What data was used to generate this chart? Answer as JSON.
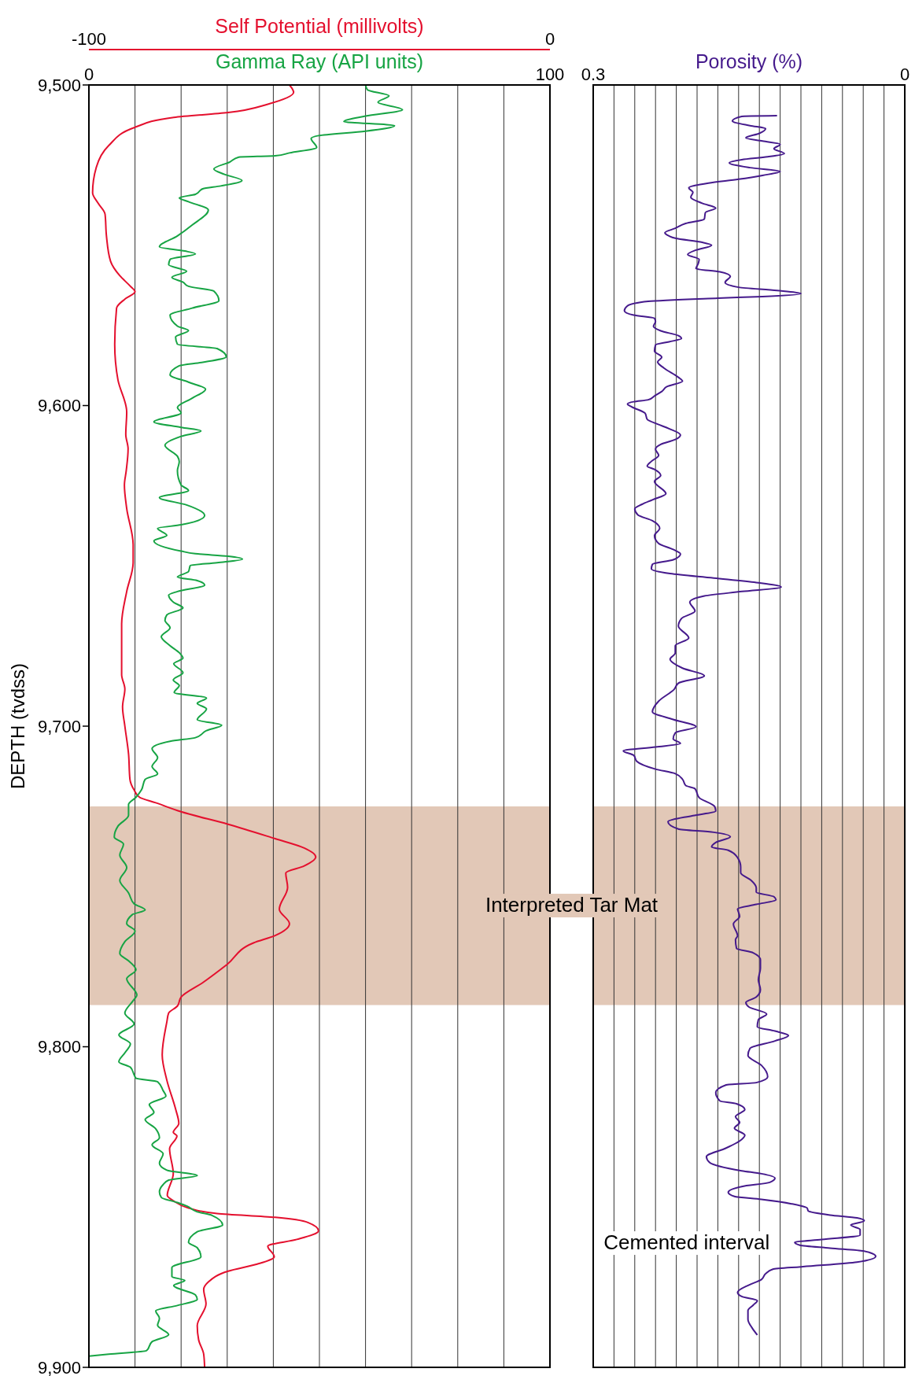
{
  "chart_data": [
    {
      "type": "line",
      "xlabel": "Self Potential (millivolts)",
      "x2label": "Gamma Ray (API units)",
      "ylabel": "DEPTH (tvdss)",
      "xlim": [
        -100,
        0
      ],
      "xticks": [
        -100,
        {
          "value": -90,
          "label": null
        },
        {
          "value": -80,
          "label": null
        },
        {
          "value": -70,
          "label": null
        },
        {
          "value": -60,
          "label": null
        },
        {
          "value": -50,
          "label": null
        },
        {
          "value": -40,
          "label": null
        },
        {
          "value": -30,
          "label": null
        },
        {
          "value": -20,
          "label": null
        },
        {
          "value": -10,
          "label": null
        },
        0
      ],
      "x2lim": [
        0,
        100
      ],
      "x2ticks": [
        0,
        100
      ],
      "ylim": [
        9900,
        9500
      ],
      "yticks": [
        {
          "value": 9500,
          "label": "9,500"
        },
        {
          "value": 9600,
          "label": "9,600"
        },
        {
          "value": 9700,
          "label": "9,700"
        },
        {
          "value": 9800,
          "label": "9,800"
        },
        {
          "value": 9900,
          "label": "9,900"
        }
      ],
      "grid": "x",
      "marker": "none",
      "line_style": "solid",
      "bands": [
        {
          "axis": "y",
          "from": 9725,
          "to": 9787,
          "label": "Interpreted Tar Mat",
          "color": "#e2c8b7"
        }
      ],
      "series": [
        {
          "color": "#e4102e",
          "x": [
            -56.5,
            -55.6,
            -61.2,
            -69.8,
            -81.6,
            -90.2,
            -95.7,
            -98.4,
            -99.2,
            -98,
            -96.5,
            -96.2,
            -95.3,
            -93.3,
            -91,
            -90,
            -92.2,
            -94,
            -94.4,
            -93.7,
            -91.8,
            -92,
            -91.5,
            -91.9,
            -92.3,
            -91.8,
            -90.4,
            -90.4,
            -91.8,
            -92.9,
            -92.9,
            -92.2,
            -92.7,
            -92.2,
            -91.4,
            -91.1,
            -90.2,
            -89,
            -85.5,
            -80,
            -69.8,
            -59.6,
            -53.3,
            -50.8,
            -53.3,
            -57.3,
            -56.9,
            -58.7,
            -56.5,
            -59.6,
            -64.3,
            -70,
            -75.3,
            -80,
            -80.8,
            -82.7,
            -83.1,
            -84.1,
            -83.1,
            -81.2,
            -80.5,
            -81.7,
            -80.9,
            -82.5,
            -81.7,
            -83,
            -81.6,
            -78.4,
            -72.2,
            -59.6,
            -52.5,
            -50.2,
            -54.9,
            -61.2,
            -59.8,
            -63.5,
            -69.8,
            -74.1,
            -75.1,
            -74.6,
            -76.5,
            -76.2,
            -75.1,
            -74.9
          ],
          "values": [
            9500,
            9502.3,
            9506,
            9508.6,
            9510.1,
            9513.3,
            9518.9,
            9525.7,
            9533.6,
            9536.9,
            9540.3,
            9547,
            9555,
            9559.5,
            9562.8,
            9564.5,
            9566.8,
            9569.6,
            9580.9,
            9592,
            9602,
            9609,
            9613.5,
            9620.3,
            9624.8,
            9632.1,
            9643.4,
            9649,
            9658,
            9668.1,
            9683.9,
            9688.4,
            9694,
            9700,
            9708.7,
            9716.6,
            9719.9,
            9722.2,
            9723.9,
            9726.7,
            9730.6,
            9735.1,
            9738,
            9740.8,
            9743.6,
            9745.8,
            9750.3,
            9757.1,
            9761.6,
            9765.3,
            9767.6,
            9774.3,
            9780,
            9784.5,
            9787.3,
            9789.5,
            9792.3,
            9802.5,
            9810.4,
            9819.4,
            9823.9,
            9826.7,
            9827.8,
            9831.8,
            9839.6,
            9846.4,
            9848.1,
            9850.3,
            9852,
            9853.2,
            9854.8,
            9857.4,
            9860.1,
            9862.2,
            9865.5,
            9867.8,
            9870,
            9873.4,
            9875.7,
            9880.2,
            9887,
            9891.4,
            9895.9,
            9900
          ]
        },
        {
          "color": "#17a444",
          "axis": "x2",
          "x": [
            60,
            60.4,
            65.1,
            62.7,
            68,
            60,
            55.3,
            66.3,
            60,
            49.8,
            48.2,
            49.4,
            43.5,
            40.4,
            32.5,
            30.6,
            27.1,
            29.4,
            33.2,
            28.6,
            24.7,
            23.1,
            19.6,
            21.6,
            25.9,
            22.4,
            19.2,
            15.3,
            20.8,
            23.1,
            17.6,
            17.3,
            21.2,
            18,
            20.4,
            21.6,
            27.1,
            28.2,
            22.4,
            17.6,
            19.2,
            21.6,
            18.8,
            19.2,
            27.8,
            29.8,
            24.7,
            19.6,
            17.6,
            21.6,
            25.3,
            22.4,
            19.2,
            20,
            14.1,
            20,
            24.3,
            20,
            16.5,
            19.2,
            19.6,
            19.2,
            20,
            21.6,
            15.3,
            21.2,
            25.1,
            20,
            14.9,
            16.9,
            14.1,
            20,
            23.1,
            30.2,
            33.3,
            27.8,
            22,
            21.6,
            19.2,
            23.5,
            25.1,
            19.2,
            17.3,
            18.4,
            20.4,
            16.9,
            16.5,
            17.6,
            15.7,
            17.6,
            19.6,
            20.4,
            18.4,
            20.4,
            18.3,
            19.6,
            18.5,
            25.5,
            23.5,
            25.5,
            23.5,
            28.8,
            25.5,
            23.1,
            17.6,
            13.7,
            14.9,
            13.7,
            14.9,
            12.2,
            11.4,
            10.2,
            8.6,
            8.6,
            6.3,
            5.5,
            7.5,
            6.7,
            8.2,
            6.7,
            8.6,
            9.8,
            12.2,
            9.4,
            8.2,
            10,
            7.8,
            6.7,
            8.6,
            10.2,
            8.2,
            10.4,
            9.6,
            7.8,
            9.8,
            6.5,
            9,
            7.8,
            6.5,
            9,
            9.8,
            10.2,
            14.9,
            16.1,
            16.7,
            13.1,
            14.1,
            12.2,
            14.5,
            15.3,
            13.7,
            16.1,
            15.3,
            16.9,
            23.5,
            17.3,
            16.1,
            15.3,
            15.7,
            19.2,
            21.4,
            23.5,
            26.7,
            29,
            23.5,
            21.6,
            23.5,
            24.3,
            18,
            18,
            20.8,
            18.4,
            23.1,
            23.5,
            19.2,
            14.5,
            15.3,
            14.9,
            17.3,
            13.7,
            12.5,
            4.3,
            0
          ],
          "values": [
            9500,
            9501.5,
            9503.4,
            9505.4,
            9507.7,
            9509.7,
            9511.4,
            9512.7,
            9514.4,
            9515.8,
            9516.7,
            9519.5,
            9521.2,
            9522.1,
            9522.5,
            9524,
            9526.2,
            9527.9,
            9529.8,
            9531.5,
            9532.4,
            9534.1,
            9535.2,
            9536.4,
            9539,
            9543.7,
            9547.1,
            9550.5,
            9551.8,
            9552.7,
            9554.4,
            9556.1,
            9558.1,
            9560,
            9561.5,
            9562.8,
            9564.3,
            9567.3,
            9569.6,
            9571.8,
            9575.2,
            9576.6,
            9578.6,
            9580.9,
            9582.2,
            9584.8,
            9586.5,
            9587.6,
            9590.4,
            9592.7,
            9594.9,
            9597.7,
            9600.6,
            9602.3,
            9605.1,
            9606.8,
            9607.9,
            9609.6,
            9612.4,
            9615.8,
            9617.5,
            9620.3,
            9624.8,
            9626.5,
            9628.7,
            9631,
            9634.3,
            9637.2,
            9638.3,
            9640.5,
            9642.2,
            9645.4,
            9646.2,
            9647,
            9647.9,
            9649,
            9649.9,
            9651.8,
            9653.5,
            9654.6,
            9656,
            9658,
            9659.1,
            9661.4,
            9663.1,
            9665.3,
            9667,
            9669.3,
            9672.1,
            9674.9,
            9677.1,
            9678.8,
            9680.5,
            9683.3,
            9685.6,
            9687.3,
            9689.5,
            9691.2,
            9692.9,
            9694.6,
            9698,
            9699.7,
            9701.4,
            9703.6,
            9704.7,
            9707,
            9709.8,
            9712.6,
            9714.9,
            9716.6,
            9719.9,
            9722.2,
            9724.4,
            9727.8,
            9731.2,
            9734.6,
            9736.8,
            9740.2,
            9744.1,
            9748.1,
            9752,
            9755.4,
            9757.3,
            9758.8,
            9761.6,
            9763.9,
            9767.2,
            9770.9,
            9773.2,
            9776,
            9778.8,
            9783.9,
            9785.6,
            9789.5,
            9792.9,
            9796.3,
            9799.1,
            9801.9,
            9804.7,
            9806.4,
            9808.7,
            9809.8,
            9810.9,
            9813.7,
            9815.4,
            9818,
            9820.5,
            9822.7,
            9825.6,
            9828.4,
            9830.6,
            9833.4,
            9836.3,
            9838.5,
            9840.2,
            9841.6,
            9843,
            9845.3,
            9847,
            9848.6,
            9849.8,
            9851.5,
            9852.6,
            9855.6,
            9857.7,
            9861,
            9862.7,
            9865.5,
            9868.9,
            9871.7,
            9872.9,
            9874.5,
            9877.4,
            9878.8,
            9880.7,
            9882.4,
            9884.7,
            9886.9,
            9889.8,
            9892,
            9894.8,
            9895.9,
            9896.5
          ]
        }
      ]
    },
    {
      "type": "line",
      "xlabel": "Porosity (%)",
      "xlim": [
        0.3,
        0
      ],
      "xticks": [
        0.3,
        {
          "value": 0.28,
          "label": null
        },
        {
          "value": 0.26,
          "label": null
        },
        {
          "value": 0.24,
          "label": null
        },
        {
          "value": 0.22,
          "label": null
        },
        {
          "value": 0.2,
          "label": null
        },
        {
          "value": 0.18,
          "label": null
        },
        {
          "value": 0.16,
          "label": null
        },
        {
          "value": 0.14,
          "label": null
        },
        {
          "value": 0.12,
          "label": null
        },
        {
          "value": 0.1,
          "label": null
        },
        {
          "value": 0.08,
          "label": null
        },
        {
          "value": 0.06,
          "label": null
        },
        {
          "value": 0.04,
          "label": null
        },
        {
          "value": 0.02,
          "label": null
        },
        0
      ],
      "ylim": [
        9900,
        9500
      ],
      "tick_labels": "x",
      "grid": "x",
      "marker": "none",
      "line_style": "solid",
      "bands": [
        {
          "axis": "y",
          "from": 9725,
          "to": 9787,
          "color": "#e2c8b7"
        }
      ],
      "annotations": [
        "Cemented interval"
      ],
      "series": [
        {
          "color": "#451a8c",
          "x": [
            0.123,
            0.157,
            0.166,
            0.149,
            0.134,
            0.14,
            0.153,
            0.137,
            0.12,
            0.126,
            0.116,
            0.132,
            0.157,
            0.169,
            0.149,
            0.12,
            0.137,
            0.16,
            0.189,
            0.208,
            0.204,
            0.206,
            0.195,
            0.182,
            0.192,
            0.193,
            0.211,
            0.221,
            0.231,
            0.227,
            0.221,
            0.195,
            0.186,
            0.201,
            0.209,
            0.198,
            0.199,
            0.201,
            0.178,
            0.168,
            0.173,
            0.16,
            0.123,
            0.1,
            0.137,
            0.18,
            0.247,
            0.267,
            0.27,
            0.261,
            0.241,
            0.24,
            0.242,
            0.235,
            0.218,
            0.215,
            0.227,
            0.24,
            0.241,
            0.234,
            0.238,
            0.232,
            0.218,
            0.214,
            0.229,
            0.234,
            0.241,
            0.247,
            0.261,
            0.267,
            0.263,
            0.25,
            0.248,
            0.238,
            0.227,
            0.216,
            0.221,
            0.235,
            0.24,
            0.237,
            0.244,
            0.248,
            0.241,
            0.235,
            0.241,
            0.23,
            0.243,
            0.253,
            0.26,
            0.257,
            0.243,
            0.236,
            0.241,
            0.237,
            0.223,
            0.216,
            0.223,
            0.243,
            0.244,
            0.226,
            0.184,
            0.143,
            0.119,
            0.157,
            0.193,
            0.207,
            0.202,
            0.215,
            0.218,
            0.208,
            0.221,
            0.221,
            0.226,
            0.214,
            0.193,
            0.218,
            0.222,
            0.237,
            0.243,
            0.223,
            0.201,
            0.221,
            0.223,
            0.216,
            0.24,
            0.271,
            0.261,
            0.258,
            0.24,
            0.221,
            0.214,
            0.211,
            0.202,
            0.198,
            0.183,
            0.182,
            0.204,
            0.228,
            0.218,
            0.184,
            0.168,
            0.182,
            0.186,
            0.17,
            0.161,
            0.158,
            0.158,
            0.148,
            0.143,
            0.143,
            0.126,
            0.124,
            0.143,
            0.161,
            0.159,
            0.165,
            0.161,
            0.163,
            0.162,
            0.146,
            0.139,
            0.139,
            0.141,
            0.139,
            0.143,
            0.153,
            0.15,
            0.133,
            0.141,
            0.142,
            0.125,
            0.112,
            0.125,
            0.149,
            0.151,
            0.138,
            0.132,
            0.143,
            0.172,
            0.182,
            0.178,
            0.162,
            0.154,
            0.163,
            0.159,
            0.164,
            0.154,
            0.159,
            0.172,
            0.191,
            0.188,
            0.157,
            0.138,
            0.125,
            0.13,
            0.157,
            0.17,
            0.164,
            0.138,
            0.109,
            0.094,
            0.093,
            0.072,
            0.046,
            0.039,
            0.052,
            0.043,
            0.043,
            0.08,
            0.106,
            0.101,
            0.072,
            0.04,
            0.028,
            0.046,
            0.098,
            0.127,
            0.134,
            0.138,
            0.15,
            0.161,
            0.157,
            0.142,
            0.146,
            0.151,
            0.151,
            0.147,
            0.142
          ],
          "values": [
            9509.6,
            9509.8,
            9511.2,
            9512.7,
            9513.6,
            9515.1,
            9516.5,
            9517.5,
            9518.5,
            9519.9,
            9521.4,
            9522.4,
            9523.3,
            9524.3,
            9525.8,
            9527,
            9528.2,
            9529.4,
            9530.6,
            9532.1,
            9533.5,
            9535,
            9536.9,
            9538.4,
            9539.8,
            9541.8,
            9543.2,
            9544.7,
            9546.1,
            9547.1,
            9547.8,
            9549.1,
            9550,
            9551.5,
            9552.9,
            9554.4,
            9555.8,
            9557.3,
            9558.3,
            9559.7,
            9561.6,
            9563.1,
            9564.1,
            9565.1,
            9566,
            9566.5,
            9567.5,
            9568.9,
            9570.4,
            9571.8,
            9572.8,
            9573.8,
            9575.3,
            9576.7,
            9578.2,
            9579.1,
            9580.1,
            9581.1,
            9583,
            9584.9,
            9586.4,
            9588.3,
            9591.2,
            9592.4,
            9594.1,
            9595.6,
            9597,
            9598.2,
            9598.8,
            9599.5,
            9600.4,
            9602.4,
            9604.3,
            9605.8,
            9607.2,
            9609.2,
            9610.6,
            9612.1,
            9613.6,
            9615.5,
            9617.4,
            9618.9,
            9619.9,
            9621.8,
            9623.7,
            9627.5,
            9629.4,
            9630.8,
            9632.2,
            9634.1,
            9635.9,
            9638.3,
            9640.6,
            9643,
            9644.9,
            9646.3,
            9648.1,
            9649.5,
            9650.9,
            9652.4,
            9653.8,
            9655.2,
            9656.6,
            9658,
            9659.4,
            9661.3,
            9664.1,
            9666.4,
            9668.8,
            9672.5,
            9674.9,
            9677.2,
            9679.1,
            9681.9,
            9684.3,
            9686.6,
            9688.5,
            9692.2,
            9695.5,
            9697.9,
            9700.2,
            9702.1,
            9704,
            9705.4,
            9706.5,
            9707.7,
            9709.1,
            9711,
            9713.4,
            9714.8,
            9716.6,
            9718.5,
            9719.5,
            9722.3,
            9725.1,
            9726.5,
            9727.9,
            9729.8,
            9732.1,
            9733.1,
            9734.5,
            9736.3,
            9737.7,
            9738.7,
            9741,
            9743.9,
            9745.7,
            9748.1,
            9750.4,
            9751.8,
            9753.2,
            9754.2,
            9755.6,
            9757,
            9759.3,
            9761.7,
            9765.4,
            9766.6,
            9769.3,
            9770.7,
            9772.9,
            9775.5,
            9779.1,
            9782.2,
            9784.5,
            9786.2,
            9787.6,
            9789.8,
            9791.6,
            9793.8,
            9795.1,
            9796.5,
            9798.2,
            9800.5,
            9802.7,
            9805.8,
            9809.4,
            9811.2,
            9811.9,
            9814.3,
            9816.9,
            9817.8,
            9819.6,
            9821.8,
            9823.6,
            9825.4,
            9827.6,
            9829.4,
            9831.6,
            9834.3,
            9836.1,
            9838.7,
            9839.6,
            9841,
            9842.3,
            9843.6,
            9845.4,
            9846.7,
            9847.6,
            9849,
            9850.3,
            9851.2,
            9852.5,
            9853.4,
            9854.3,
            9855.6,
            9857,
            9858.8,
            9860.1,
            9861,
            9861.9,
            9862.8,
            9863.7,
            9865.4,
            9867.2,
            9868.6,
            9869.4,
            9870.8,
            9872.6,
            9874.3,
            9876.6,
            9877.9,
            9879.2,
            9880.6,
            9882.3,
            9885,
            9887.7,
            9889.9
          ]
        }
      ]
    }
  ]
}
